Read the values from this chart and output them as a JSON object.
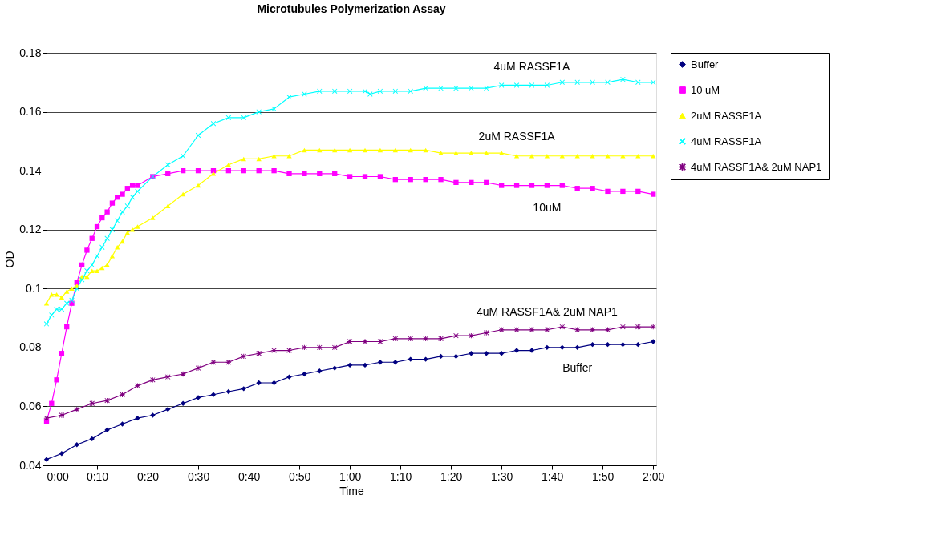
{
  "chart_data": {
    "type": "line",
    "title": "Microtubules Polymerization Assay",
    "xlabel": "Time",
    "ylabel": "OD",
    "xlim": [
      0,
      2.01
    ],
    "ylim": [
      0.04,
      0.18
    ],
    "xticks": [
      {
        "value": 0,
        "label": "0:00"
      },
      {
        "value": 0.1667,
        "label": "0:10"
      },
      {
        "value": 0.3333,
        "label": "0:20"
      },
      {
        "value": 0.5,
        "label": "0:30"
      },
      {
        "value": 0.6667,
        "label": "0:40"
      },
      {
        "value": 0.8333,
        "label": "0:50"
      },
      {
        "value": 1,
        "label": "1:00"
      },
      {
        "value": 1.1667,
        "label": "1:10"
      },
      {
        "value": 1.3333,
        "label": "1:20"
      },
      {
        "value": 1.5,
        "label": "1:30"
      },
      {
        "value": 1.6667,
        "label": "1:40"
      },
      {
        "value": 1.8333,
        "label": "1:50"
      },
      {
        "value": 2,
        "label": "2:00"
      }
    ],
    "yticks": [
      0.04,
      0.06,
      0.08,
      0.1,
      0.12,
      0.14,
      0.16,
      0.18
    ],
    "grid": "y",
    "legend": "right",
    "series": [
      {
        "name": "Buffer",
        "color": "#000080",
        "marker": "diamond",
        "x": [
          0,
          0.05,
          0.1,
          0.15,
          0.2,
          0.25,
          0.3,
          0.35,
          0.4,
          0.45,
          0.5,
          0.55,
          0.6,
          0.65,
          0.7,
          0.75,
          0.8,
          0.85,
          0.9,
          0.95,
          1,
          1.05,
          1.1,
          1.15,
          1.2,
          1.25,
          1.3,
          1.35,
          1.4,
          1.45,
          1.5,
          1.55,
          1.6,
          1.65,
          1.7,
          1.75,
          1.8,
          1.85,
          1.9,
          1.95,
          2
        ],
        "values": [
          0.042,
          0.044,
          0.047,
          0.049,
          0.052,
          0.054,
          0.056,
          0.057,
          0.059,
          0.061,
          0.063,
          0.064,
          0.065,
          0.066,
          0.068,
          0.068,
          0.07,
          0.071,
          0.072,
          0.073,
          0.074,
          0.074,
          0.075,
          0.075,
          0.076,
          0.076,
          0.077,
          0.077,
          0.078,
          0.078,
          0.078,
          0.079,
          0.079,
          0.08,
          0.08,
          0.08,
          0.081,
          0.081,
          0.081,
          0.081,
          0.082
        ]
      },
      {
        "name": "10 uM",
        "color": "#ff00ff",
        "marker": "square",
        "x": [
          0,
          0.0167,
          0.0333,
          0.05,
          0.0667,
          0.0833,
          0.1,
          0.1167,
          0.1333,
          0.15,
          0.1667,
          0.1833,
          0.2,
          0.2167,
          0.2333,
          0.25,
          0.2667,
          0.2833,
          0.3,
          0.35,
          0.4,
          0.45,
          0.5,
          0.55,
          0.6,
          0.65,
          0.7,
          0.75,
          0.8,
          0.85,
          0.9,
          0.95,
          1,
          1.05,
          1.1,
          1.15,
          1.2,
          1.25,
          1.3,
          1.35,
          1.4,
          1.45,
          1.5,
          1.55,
          1.6,
          1.65,
          1.7,
          1.75,
          1.8,
          1.85,
          1.9,
          1.95,
          2
        ],
        "values": [
          0.055,
          0.061,
          0.069,
          0.078,
          0.087,
          0.095,
          0.102,
          0.108,
          0.113,
          0.117,
          0.121,
          0.124,
          0.126,
          0.129,
          0.131,
          0.132,
          0.134,
          0.135,
          0.135,
          0.138,
          0.139,
          0.14,
          0.14,
          0.14,
          0.14,
          0.14,
          0.14,
          0.14,
          0.139,
          0.139,
          0.139,
          0.139,
          0.138,
          0.138,
          0.138,
          0.137,
          0.137,
          0.137,
          0.137,
          0.136,
          0.136,
          0.136,
          0.135,
          0.135,
          0.135,
          0.135,
          0.135,
          0.134,
          0.134,
          0.133,
          0.133,
          0.133,
          0.132
        ]
      },
      {
        "name": "2uM RASSF1A",
        "color": "#ffff00",
        "marker": "triangle",
        "x": [
          0,
          0.0167,
          0.0333,
          0.05,
          0.0667,
          0.0833,
          0.1,
          0.1167,
          0.1333,
          0.15,
          0.1667,
          0.1833,
          0.2,
          0.2167,
          0.2333,
          0.25,
          0.2667,
          0.2833,
          0.3,
          0.35,
          0.4,
          0.45,
          0.5,
          0.55,
          0.6,
          0.65,
          0.7,
          0.75,
          0.8,
          0.85,
          0.9,
          0.95,
          1,
          1.05,
          1.1,
          1.15,
          1.2,
          1.25,
          1.3,
          1.35,
          1.4,
          1.45,
          1.5,
          1.55,
          1.6,
          1.65,
          1.7,
          1.75,
          1.8,
          1.85,
          1.9,
          1.95,
          2
        ],
        "values": [
          0.095,
          0.098,
          0.098,
          0.097,
          0.099,
          0.1,
          0.101,
          0.104,
          0.104,
          0.106,
          0.106,
          0.107,
          0.108,
          0.111,
          0.114,
          0.116,
          0.119,
          0.12,
          0.121,
          0.124,
          0.128,
          0.132,
          0.135,
          0.139,
          0.142,
          0.144,
          0.144,
          0.145,
          0.145,
          0.147,
          0.147,
          0.147,
          0.147,
          0.147,
          0.147,
          0.147,
          0.147,
          0.147,
          0.146,
          0.146,
          0.146,
          0.146,
          0.146,
          0.145,
          0.145,
          0.145,
          0.145,
          0.145,
          0.145,
          0.145,
          0.145,
          0.145,
          0.145
        ]
      },
      {
        "name": "4uM RASSF1A",
        "color": "#00ffff",
        "marker": "cross",
        "x": [
          0,
          0.0167,
          0.0333,
          0.05,
          0.0667,
          0.0833,
          0.1,
          0.1167,
          0.1333,
          0.15,
          0.1667,
          0.1833,
          0.2,
          0.2167,
          0.2333,
          0.25,
          0.2667,
          0.2833,
          0.3,
          0.35,
          0.4,
          0.45,
          0.5,
          0.55,
          0.6,
          0.65,
          0.7,
          0.75,
          0.8,
          0.85,
          0.9,
          0.95,
          1,
          1.05,
          1.0667,
          1.1,
          1.15,
          1.2,
          1.25,
          1.3,
          1.35,
          1.4,
          1.45,
          1.5,
          1.55,
          1.6,
          1.65,
          1.7,
          1.75,
          1.8,
          1.85,
          1.9,
          1.95,
          2
        ],
        "values": [
          0.088,
          0.091,
          0.093,
          0.093,
          0.095,
          0.096,
          0.1,
          0.103,
          0.106,
          0.108,
          0.111,
          0.114,
          0.117,
          0.12,
          0.123,
          0.126,
          0.128,
          0.131,
          0.133,
          0.138,
          0.142,
          0.145,
          0.152,
          0.156,
          0.158,
          0.158,
          0.16,
          0.161,
          0.165,
          0.166,
          0.167,
          0.167,
          0.167,
          0.167,
          0.166,
          0.167,
          0.167,
          0.167,
          0.168,
          0.168,
          0.168,
          0.168,
          0.168,
          0.169,
          0.169,
          0.169,
          0.169,
          0.17,
          0.17,
          0.17,
          0.17,
          0.171,
          0.17,
          0.17
        ]
      },
      {
        "name": "4uM RASSF1A& 2uM NAP1",
        "color": "#800080",
        "marker": "star",
        "x": [
          0,
          0.05,
          0.1,
          0.15,
          0.2,
          0.25,
          0.3,
          0.35,
          0.4,
          0.45,
          0.5,
          0.55,
          0.6,
          0.65,
          0.7,
          0.75,
          0.8,
          0.85,
          0.9,
          0.95,
          1,
          1.05,
          1.1,
          1.15,
          1.2,
          1.25,
          1.3,
          1.35,
          1.4,
          1.45,
          1.5,
          1.55,
          1.6,
          1.65,
          1.7,
          1.75,
          1.8,
          1.85,
          1.9,
          1.95,
          2
        ],
        "values": [
          0.056,
          0.057,
          0.059,
          0.061,
          0.062,
          0.064,
          0.067,
          0.069,
          0.07,
          0.071,
          0.073,
          0.075,
          0.075,
          0.077,
          0.078,
          0.079,
          0.079,
          0.08,
          0.08,
          0.08,
          0.082,
          0.082,
          0.082,
          0.083,
          0.083,
          0.083,
          0.083,
          0.084,
          0.084,
          0.085,
          0.086,
          0.086,
          0.086,
          0.086,
          0.087,
          0.086,
          0.086,
          0.086,
          0.087,
          0.087,
          0.087
        ]
      }
    ],
    "annotations": [
      "4uM RASSF1A",
      "2uM RASSF1A",
      "10uM",
      "4uM RASSF1A& 2uM NAP1",
      "Buffer"
    ]
  }
}
